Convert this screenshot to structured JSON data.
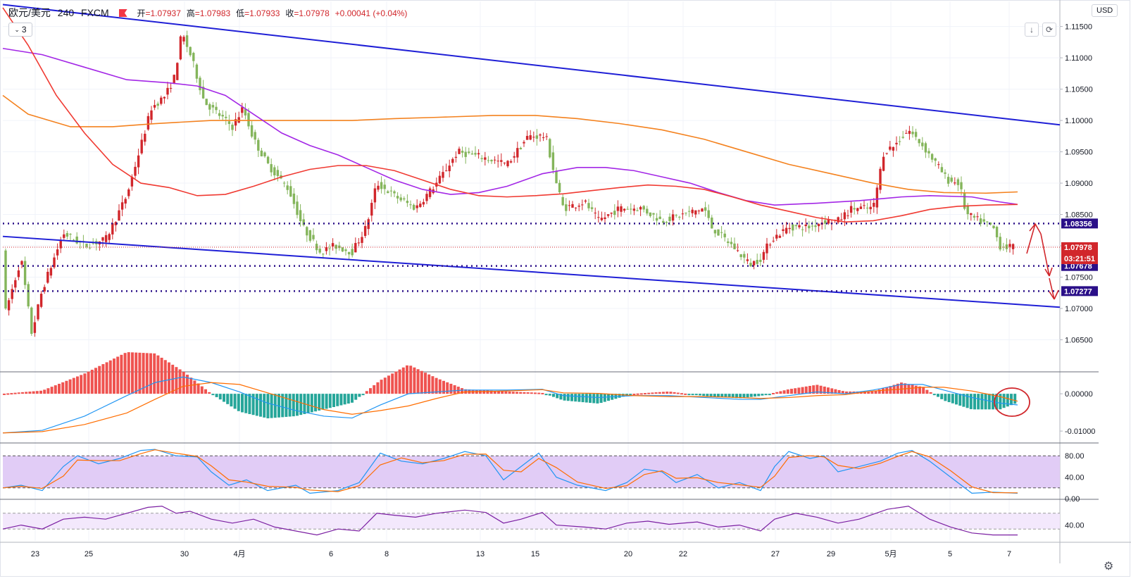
{
  "header": {
    "symbol": "欧元/美元",
    "interval": "240",
    "source": "FXCM",
    "open_label": "开",
    "open": "=1.07937",
    "high_label": "高",
    "high": "=1.07983",
    "low_label": "低",
    "low": "=1.07933",
    "close_label": "收",
    "close": "=1.07978",
    "change": "+0.00041 (+0.04%)",
    "indicator_count": "3",
    "currency": "USD"
  },
  "icons": {
    "flag": "flag-icon",
    "down": "arrow-down-icon",
    "reset": "reset-scale-icon",
    "settings": "gear-icon"
  },
  "colors": {
    "up": "#d1262b",
    "down": "#84b55b",
    "trend": "#1f1fd6",
    "ma_red": "#f03a32",
    "ma_purple": "#a327e6",
    "ma_orange": "#f4821f",
    "support": "#2a0f88",
    "rsi_fill": "#e1ccf6"
  },
  "chart_data": [
    {
      "type": "candlestick",
      "title": "",
      "x": [
        "23",
        "25",
        "30",
        "4月",
        "6",
        "8",
        "13",
        "15",
        "20",
        "22",
        "27",
        "29",
        "5月",
        "5",
        "7"
      ],
      "y_ticks": [
        "1.11500",
        "1.11000",
        "1.10500",
        "1.10000",
        "1.09500",
        "1.09000",
        "1.08500",
        "1.08000",
        "1.07500",
        "1.07000",
        "1.06500"
      ],
      "ylim": [
        1.06,
        1.119
      ],
      "grid": true,
      "last_price": "1.07978",
      "countdown": "03:21:51",
      "levels": [
        {
          "value": "1.08356"
        },
        {
          "value": "1.07678"
        },
        {
          "value": "1.07277"
        }
      ],
      "trendlines": [
        {
          "from": [
            0,
            1.1185
          ],
          "to": [
            1,
            1.0993
          ]
        },
        {
          "from": [
            0,
            1.0815
          ],
          "to": [
            1,
            1.0702
          ]
        }
      ]
    },
    {
      "type": "histogram",
      "title": "",
      "y_ticks": [
        "0.00000",
        "-0.01000"
      ],
      "ylim": [
        -0.013,
        0.0055
      ]
    },
    {
      "type": "line",
      "title": "",
      "y_ticks": [
        "80.00",
        "40.00",
        "0.00"
      ],
      "ylim": [
        0,
        100
      ],
      "bands": [
        20,
        80
      ]
    },
    {
      "type": "line",
      "title": "",
      "y_ticks": [
        "40.00"
      ],
      "ylim": [
        0,
        100
      ],
      "bands": [
        30,
        70
      ]
    }
  ]
}
